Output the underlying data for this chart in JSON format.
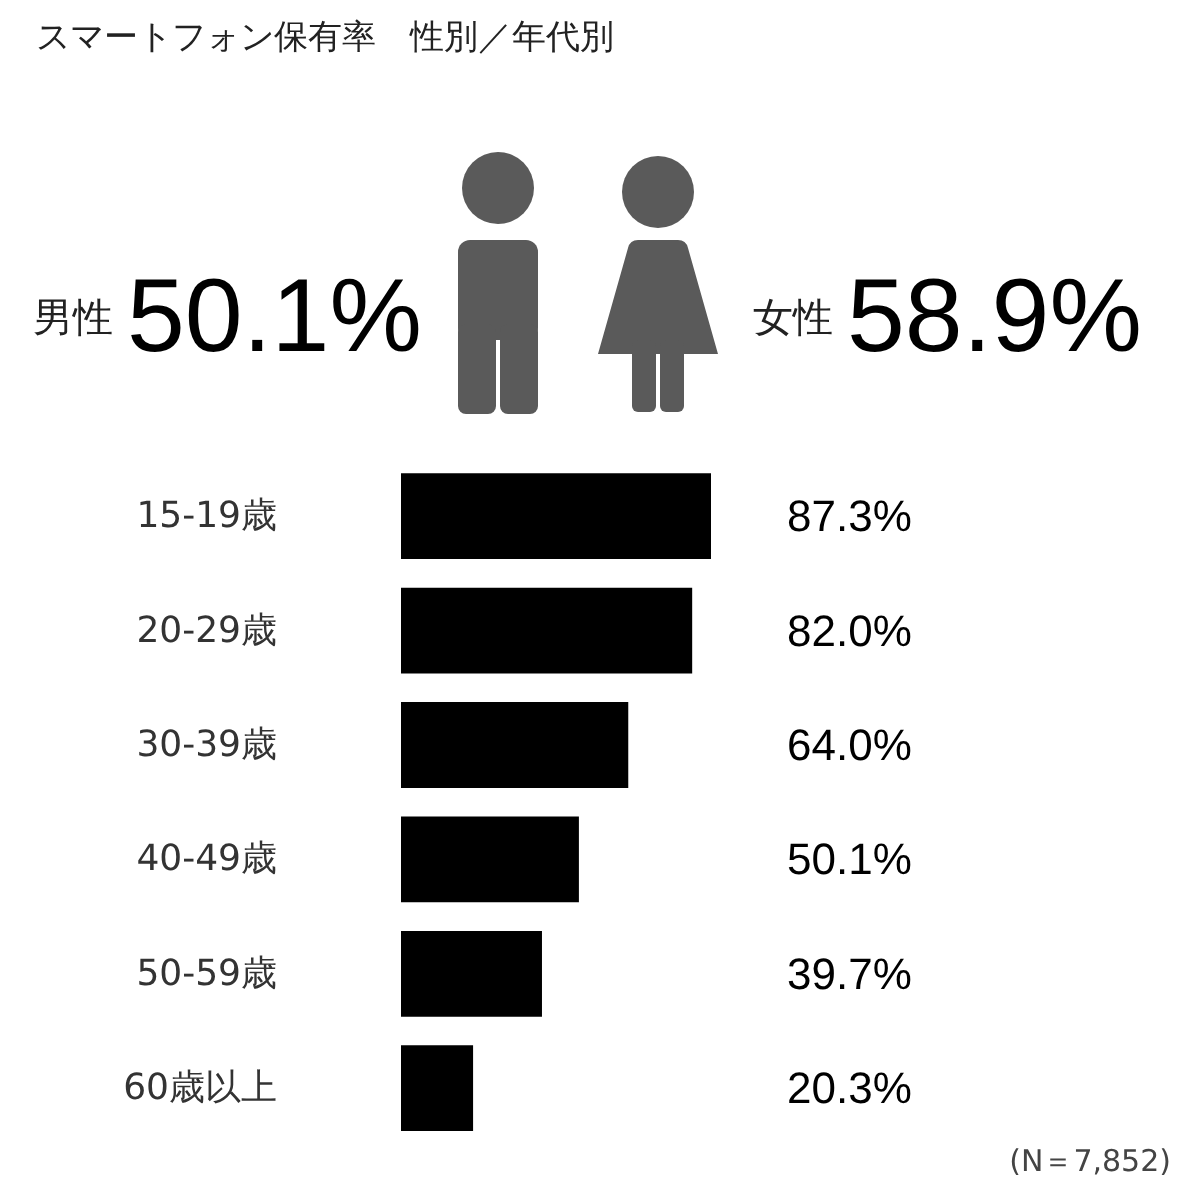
{
  "chart_data": [
    {
      "type": "other",
      "title": "スマートフォン保有率　性別／年代別",
      "categories": [
        "男性",
        "女性"
      ],
      "values": [
        50.1,
        58.9
      ],
      "value_labels": [
        "50.1%",
        "58.9%"
      ]
    },
    {
      "type": "bar",
      "orientation": "horizontal",
      "categories": [
        "15-19歳",
        "20-29歳",
        "30-39歳",
        "40-49歳",
        "50-59歳",
        "60歳以上"
      ],
      "values": [
        87.3,
        82.0,
        64.0,
        50.1,
        39.7,
        20.3
      ],
      "value_labels": [
        "87.3%",
        "82.0%",
        "64.0%",
        "50.1%",
        "39.7%",
        "20.3%"
      ],
      "color": "#000000",
      "tick_labels": "y",
      "annotations": [
        "(N＝7,852)"
      ]
    }
  ]
}
